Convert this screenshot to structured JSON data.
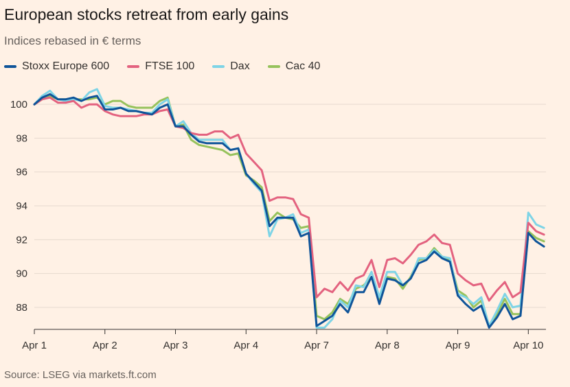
{
  "chart_data": {
    "type": "line",
    "title": "European stocks retreat from early gains",
    "subtitle": "Indices rebased in € terms",
    "source": "Source: LSEG via markets.ft.com",
    "xlabel": "",
    "ylabel": "",
    "x_ticks": [
      "Apr 1",
      "Apr 2",
      "Apr 3",
      "Apr 4",
      "Apr 7",
      "Apr 8",
      "Apr 9",
      "Apr 10"
    ],
    "y_ticks": [
      88,
      90,
      92,
      94,
      96,
      98,
      100
    ],
    "ylim": [
      86.7,
      101.3
    ],
    "grid": true,
    "legend_position": "top-left",
    "series": [
      {
        "name": "Stoxx Europe 600",
        "color": "#0f5499",
        "values": [
          100.0,
          100.4,
          100.6,
          100.3,
          100.3,
          100.4,
          100.2,
          100.4,
          100.5,
          99.7,
          99.7,
          99.8,
          99.6,
          99.6,
          99.5,
          99.4,
          99.8,
          100.0,
          98.7,
          98.7,
          98.2,
          97.8,
          97.7,
          97.7,
          97.7,
          97.3,
          97.4,
          95.9,
          95.4,
          94.9,
          92.8,
          93.3,
          93.3,
          93.3,
          92.2,
          92.4,
          86.9,
          87.2,
          87.5,
          88.2,
          87.7,
          88.9,
          88.9,
          89.8,
          88.2,
          89.7,
          89.6,
          89.3,
          89.7,
          90.6,
          90.8,
          91.3,
          90.9,
          90.7,
          88.7,
          88.2,
          87.8,
          88.1,
          86.8,
          87.4,
          88.2,
          87.3,
          87.5,
          92.4,
          91.9,
          91.6
        ]
      },
      {
        "name": "FTSE 100",
        "color": "#e3627f",
        "values": [
          100.0,
          100.3,
          100.4,
          100.1,
          100.1,
          100.2,
          99.8,
          100.0,
          100.0,
          99.6,
          99.4,
          99.3,
          99.3,
          99.3,
          99.4,
          99.4,
          99.6,
          99.7,
          98.7,
          98.6,
          98.3,
          98.2,
          98.2,
          98.4,
          98.4,
          98.0,
          98.2,
          97.1,
          96.6,
          96.1,
          94.3,
          94.5,
          94.5,
          94.4,
          93.5,
          93.3,
          88.6,
          89.1,
          88.9,
          89.5,
          89.0,
          89.7,
          89.9,
          90.8,
          89.2,
          90.8,
          90.9,
          90.6,
          91.1,
          91.7,
          91.9,
          92.3,
          91.8,
          91.7,
          90.0,
          89.6,
          89.3,
          89.4,
          88.4,
          89.0,
          89.5,
          88.6,
          88.9,
          93.0,
          92.5,
          92.3
        ]
      },
      {
        "name": "Dax",
        "color": "#7ed4e6",
        "values": [
          100.0,
          100.5,
          100.8,
          100.3,
          100.2,
          100.3,
          100.2,
          100.7,
          100.9,
          99.9,
          99.8,
          99.8,
          99.7,
          99.6,
          99.5,
          99.5,
          100.0,
          100.3,
          98.7,
          99.0,
          98.3,
          97.9,
          97.9,
          97.9,
          97.9,
          97.3,
          97.4,
          95.9,
          95.3,
          94.8,
          92.2,
          93.2,
          93.3,
          93.5,
          92.4,
          92.6,
          86.8,
          86.8,
          87.3,
          88.4,
          88.0,
          89.3,
          89.2,
          90.1,
          88.6,
          90.1,
          90.1,
          89.3,
          89.7,
          90.9,
          90.9,
          91.4,
          91.0,
          90.9,
          88.8,
          88.6,
          88.2,
          88.6,
          86.9,
          87.8,
          88.8,
          88.0,
          88.1,
          93.6,
          92.9,
          92.7
        ]
      },
      {
        "name": "Cac 40",
        "color": "#96c25c",
        "values": [
          100.0,
          100.3,
          100.5,
          100.3,
          100.3,
          100.3,
          100.3,
          100.3,
          100.4,
          100.0,
          100.2,
          100.2,
          99.9,
          99.8,
          99.8,
          99.8,
          100.2,
          100.4,
          98.7,
          98.8,
          97.9,
          97.6,
          97.5,
          97.4,
          97.3,
          97.0,
          97.1,
          95.8,
          95.5,
          95.1,
          93.1,
          93.6,
          93.3,
          93.2,
          92.7,
          92.8,
          87.5,
          87.3,
          87.7,
          88.5,
          88.2,
          89.1,
          89.3,
          89.8,
          88.5,
          89.8,
          89.7,
          89.1,
          89.8,
          90.8,
          90.9,
          91.5,
          91.0,
          90.8,
          89.0,
          88.7,
          88.0,
          88.4,
          86.9,
          87.6,
          88.5,
          87.6,
          87.6,
          92.5,
          92.1,
          91.9
        ]
      }
    ]
  }
}
